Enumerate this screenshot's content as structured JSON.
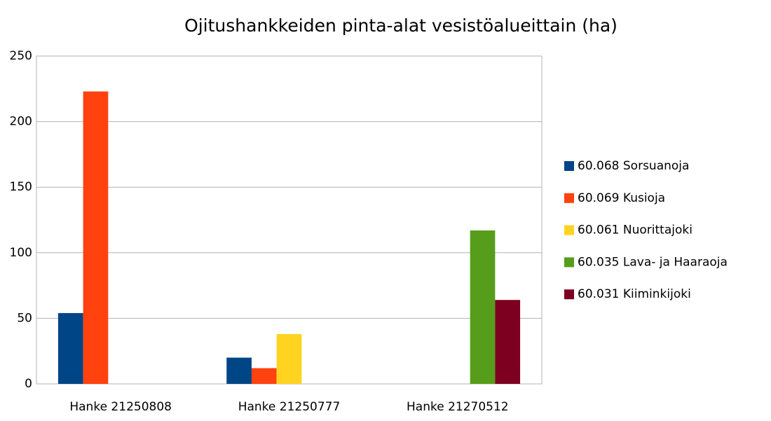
{
  "chart_data": {
    "type": "bar",
    "title": "Ojitushankkeiden pinta-alat vesistöalueittain (ha)",
    "categories": [
      "Hanke 21250808",
      "Hanke 21250777",
      "Hanke 21270512"
    ],
    "series": [
      {
        "name": "60.068 Sorsuanoja",
        "color": "#004586",
        "values": [
          54,
          20,
          null
        ]
      },
      {
        "name": "60.069 Kusioja",
        "color": "#ff420e",
        "values": [
          223,
          12,
          null
        ]
      },
      {
        "name": "60.061 Nuorittajoki",
        "color": "#ffd320",
        "values": [
          null,
          38,
          null
        ]
      },
      {
        "name": "60.035 Lava- ja Haaraoja",
        "color": "#579d1c",
        "values": [
          null,
          null,
          117
        ]
      },
      {
        "name": "60.031 Kiiminkijoki",
        "color": "#7e0021",
        "values": [
          null,
          null,
          64
        ]
      }
    ],
    "ylim": [
      0,
      250
    ],
    "yticks": [
      0,
      50,
      100,
      150,
      200,
      250
    ],
    "grid": true,
    "legend": "right"
  }
}
